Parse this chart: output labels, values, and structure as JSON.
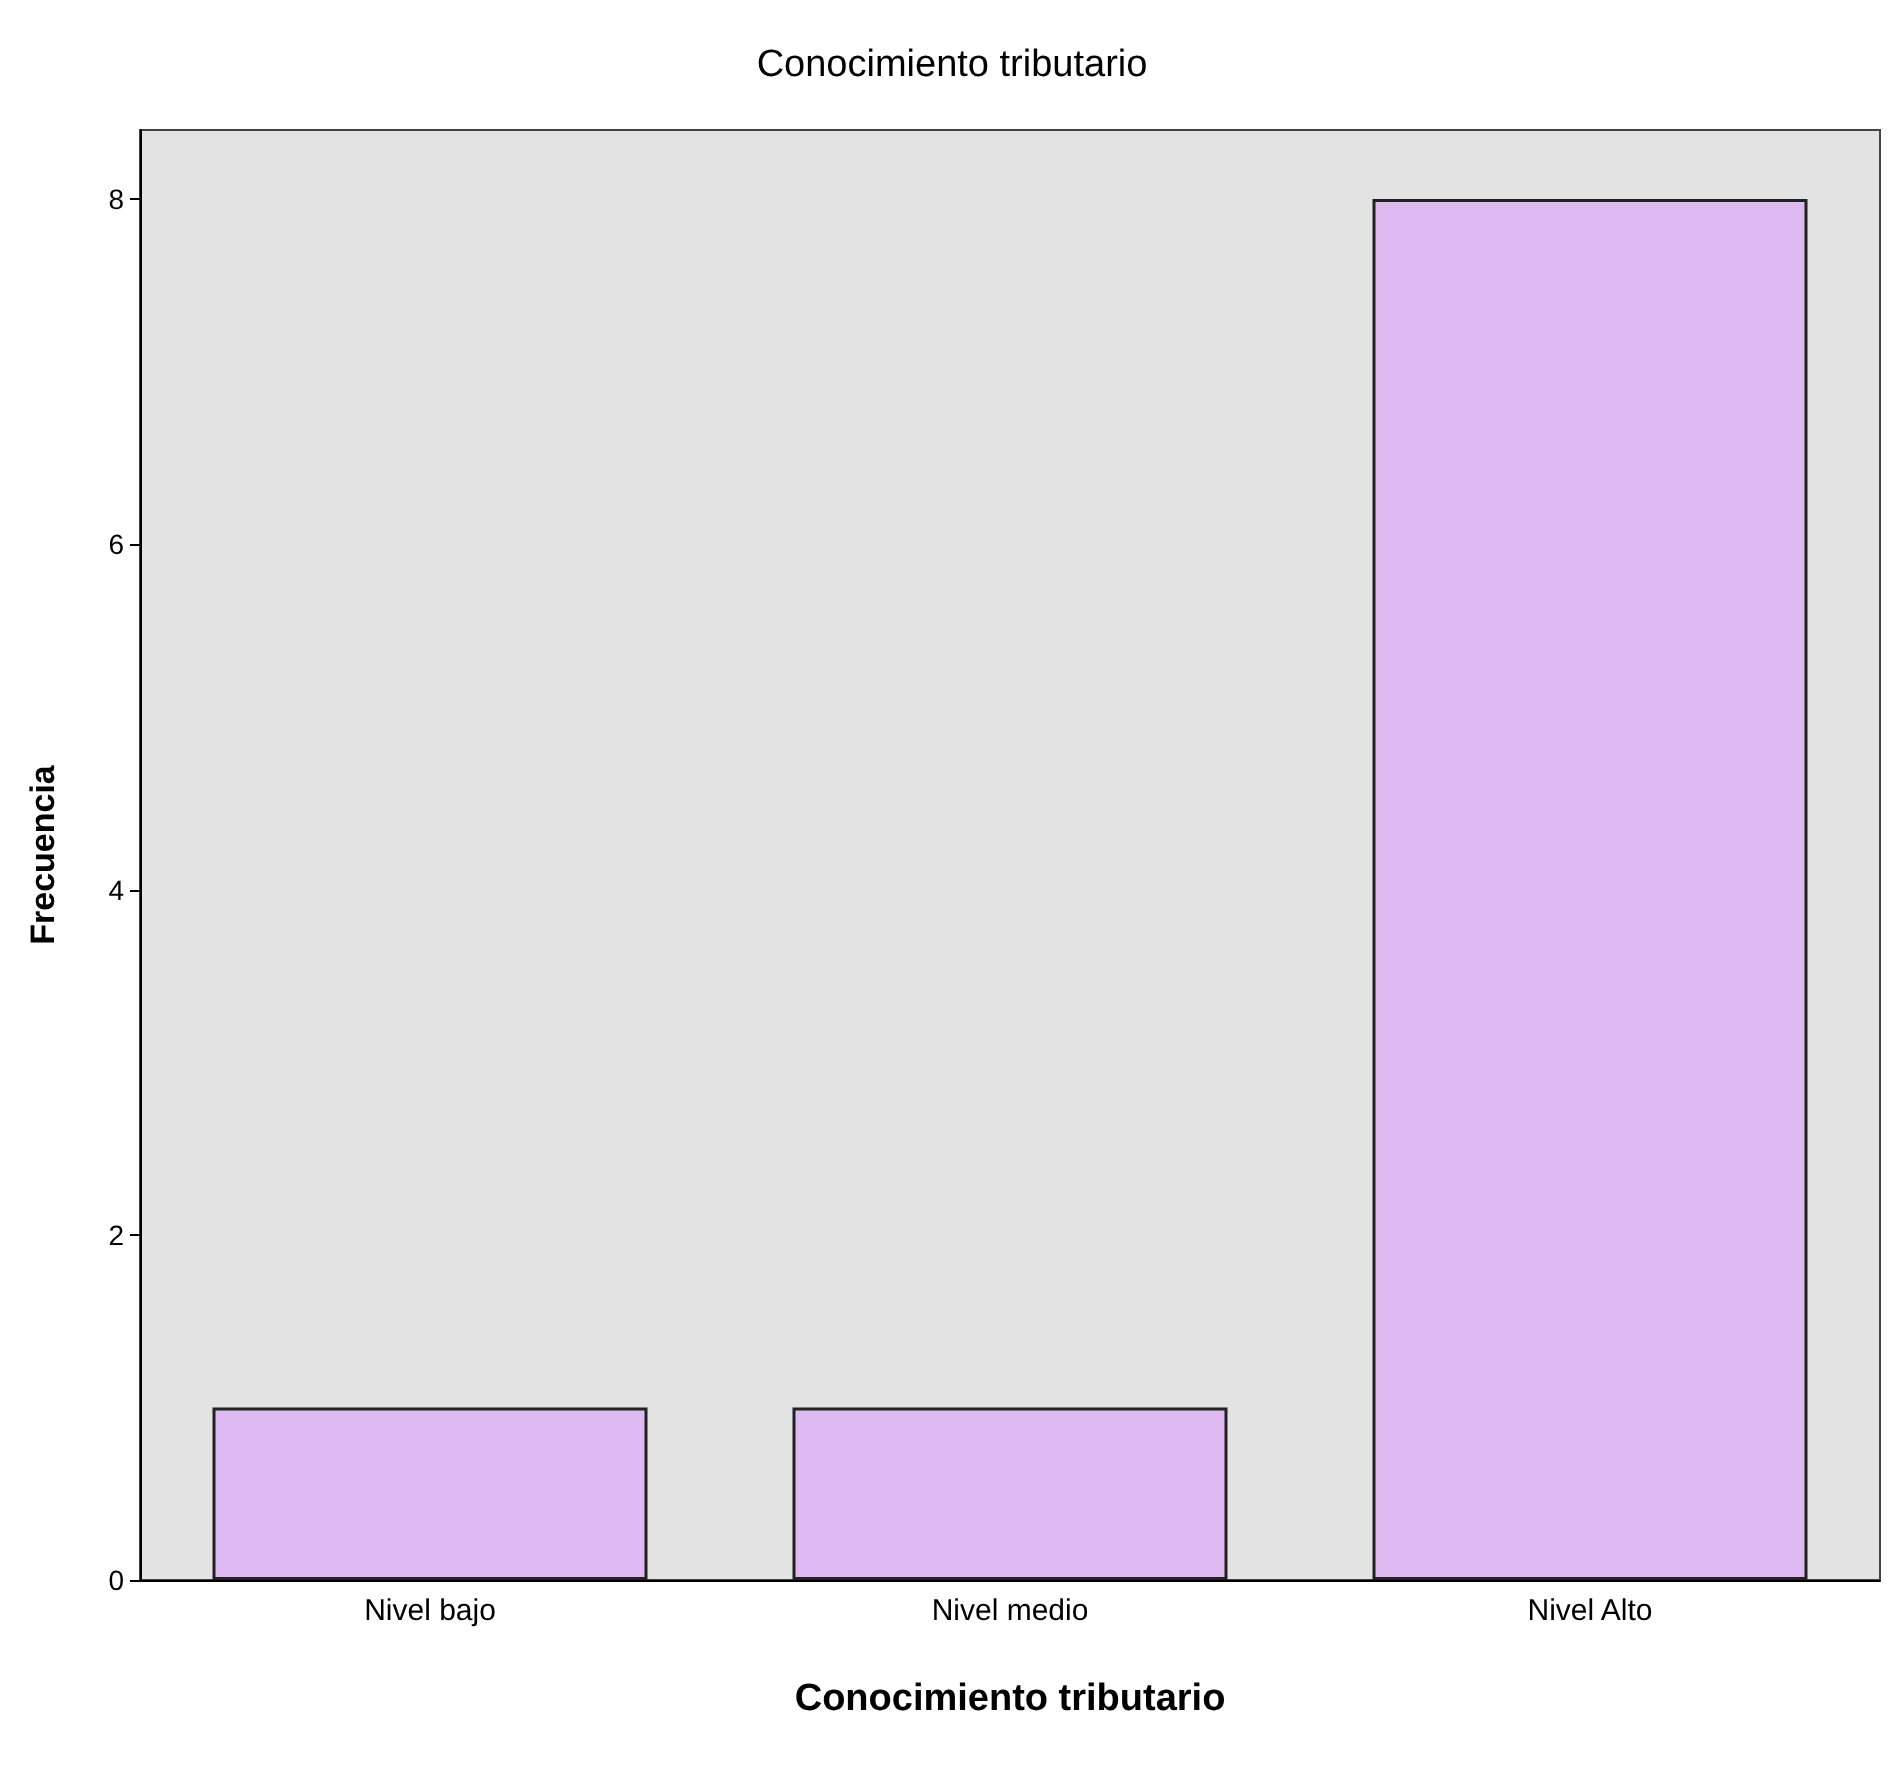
{
  "chart_data": {
    "type": "bar",
    "title": "Conocimiento tributario",
    "xlabel": "Conocimiento tributario",
    "ylabel": "Frecuencia",
    "categories": [
      "Nivel bajo",
      "Nivel medio",
      "Nivel Alto"
    ],
    "values": [
      1,
      1,
      8
    ],
    "color": "#dfb9f2",
    "ylim": [
      0,
      8.4
    ],
    "yticks": [
      0,
      2,
      4,
      6,
      8
    ]
  }
}
